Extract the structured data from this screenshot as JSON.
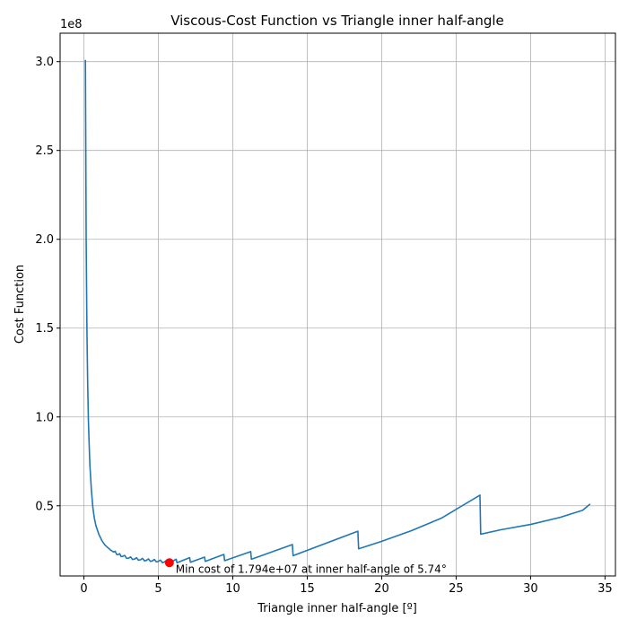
{
  "chart_data": {
    "type": "line",
    "title": "Viscous-Cost Function vs Triangle inner half-angle",
    "xlabel": "Triangle inner half-angle [º]",
    "ylabel": "Cost Function",
    "y_offset_label": "1e8",
    "xlim": [
      -1.6,
      35.7
    ],
    "ylim": [
      10500000.0,
      316000000.0
    ],
    "grid": true,
    "x_ticks": [
      0,
      5,
      10,
      15,
      20,
      25,
      30,
      35
    ],
    "x_tick_labels": [
      "0",
      "5",
      "10",
      "15",
      "20",
      "25",
      "30",
      "35"
    ],
    "y_ticks": [
      50000000.0,
      100000000.0,
      150000000.0,
      200000000.0,
      250000000.0,
      300000000.0
    ],
    "y_tick_labels": [
      "0.5",
      "1.0",
      "1.5",
      "2.0",
      "2.5",
      "3.0"
    ],
    "series": [
      {
        "color": "#1f77b4",
        "x": [
          0.1,
          0.15,
          0.2,
          0.25,
          0.3,
          0.35,
          0.4,
          0.5,
          0.6,
          0.7,
          0.8,
          1.0,
          1.2,
          1.4,
          1.6,
          1.8,
          2.0,
          2.3,
          2.6,
          3.0,
          3.4,
          3.8,
          4.2,
          4.6,
          5.0,
          5.4,
          5.74,
          6.2,
          6.25,
          7.1,
          7.15,
          8.1,
          8.15,
          9.4,
          9.45,
          11.2,
          11.25,
          14.0,
          14.05,
          18.4,
          18.45,
          20.0,
          22.0,
          24.0,
          26.6,
          26.65,
          28.0,
          30.0,
          32.0,
          33.5,
          34.0
        ],
        "y": [
          301000000,
          200000000,
          150000000,
          120000000,
          98000000,
          85000000,
          73000000,
          59000000,
          49000000,
          43000000,
          39000000,
          34000000,
          30500000,
          28000000,
          26500000,
          25000000,
          24000000,
          22500000,
          21500000,
          20500000,
          20000000,
          19600000,
          19300000,
          19000000,
          18700000,
          18300000,
          17940000,
          19900000,
          17950000,
          20800000,
          18200000,
          21100000,
          18700000,
          22600000,
          19100000,
          24200000,
          19900000,
          28200000,
          21900000,
          35700000,
          25800000,
          30000000,
          36000000,
          43000000,
          56000000,
          34000000,
          36500000,
          39500000,
          43500000,
          47500000,
          51000000
        ]
      }
    ],
    "minimum_point": {
      "x": 5.74,
      "y": 17940000,
      "color": "#ff0000",
      "label": "Min cost of 1.794e+07 at inner half-angle of 5.74°"
    }
  }
}
